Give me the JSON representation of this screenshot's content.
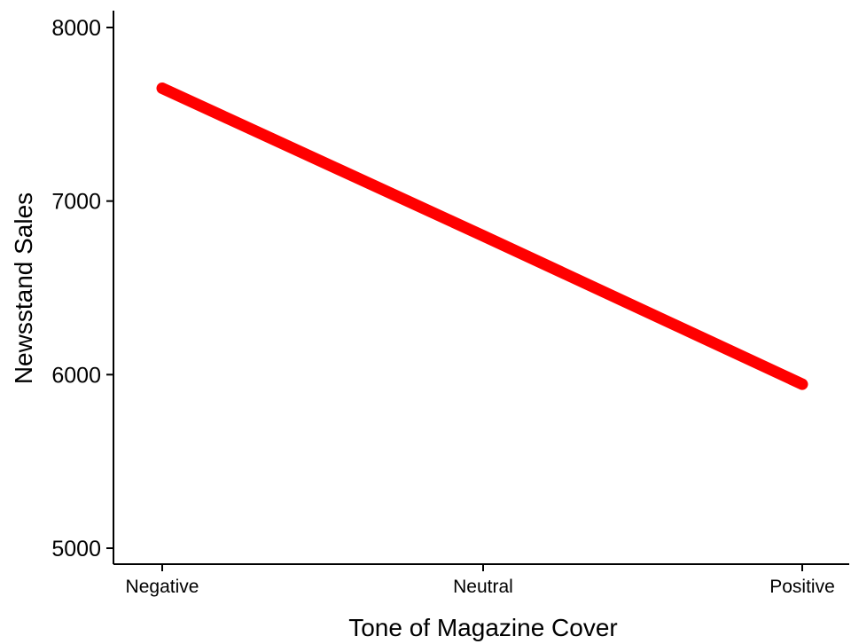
{
  "chart_data": {
    "type": "line",
    "title": "",
    "xlabel": "Tone of Magazine Cover",
    "ylabel": "Newsstand Sales",
    "categories": [
      "Negative",
      "Neutral",
      "Positive"
    ],
    "series": [
      {
        "values": [
          7650,
          6800,
          5945
        ],
        "color": "#ff0000"
      }
    ],
    "ylim": [
      5000,
      8000
    ],
    "yticks": [
      5000,
      6000,
      7000,
      8000
    ],
    "grid": false,
    "legend": "none"
  }
}
